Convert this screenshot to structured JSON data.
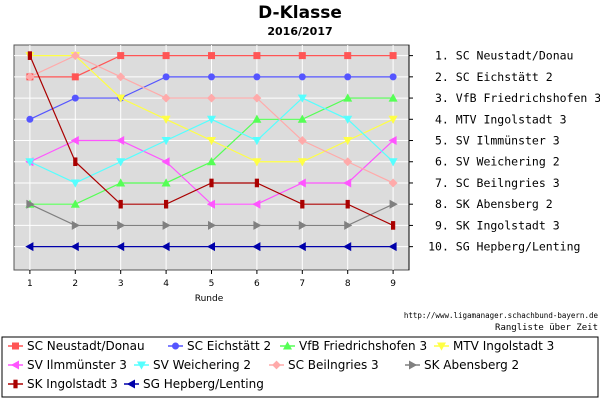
{
  "chart_data": {
    "type": "line",
    "title": "D-Klasse",
    "subtitle": "2016/2017",
    "xlabel": "Runde",
    "x": [
      1,
      2,
      3,
      4,
      5,
      6,
      7,
      8,
      9
    ],
    "xlim": [
      0.65,
      9.35
    ],
    "ylim": [
      0.5,
      11.1
    ],
    "y_inverted": true,
    "grid": true,
    "right_axis_labels": [
      "1. SC Neustadt/Donau",
      "2. SC Eichstätt 2",
      "3. VfB Friedrichshofen 3",
      "4. MTV Ingolstadt 3",
      "5. SV Ilmmünster 3",
      "6. SV Weichering 2",
      "7. SC Beilngries 3",
      "8. SK Abensberg 2",
      "9. SK Ingolstadt 3",
      "10. SG Hepberg/Lenting"
    ],
    "source_url": "http://www.ligamanager.schachbund-bayern.de",
    "source_caption": "Rangliste über Zeit",
    "legend_position": "bottom",
    "series": [
      {
        "name": "SC Neustadt/Donau",
        "color": "#ff5555",
        "marker": "square",
        "values": [
          2,
          2,
          1,
          1,
          1,
          1,
          1,
          1,
          1
        ]
      },
      {
        "name": "SC Eichstätt 2",
        "color": "#5555ff",
        "marker": "circle",
        "values": [
          4,
          3,
          3,
          2,
          2,
          2,
          2,
          2,
          2
        ]
      },
      {
        "name": "VfB Friedrichshofen 3",
        "color": "#55ff55",
        "marker": "triangle-up",
        "values": [
          8,
          8,
          7,
          7,
          6,
          4,
          4,
          3,
          3
        ]
      },
      {
        "name": "MTV Ingolstadt 3",
        "color": "#ffff44",
        "marker": "triangle-down",
        "values": [
          1,
          1,
          3,
          4,
          5,
          6,
          6,
          5,
          4
        ]
      },
      {
        "name": "SV Ilmmünster 3",
        "color": "#ff55ff",
        "marker": "triangle-left",
        "values": [
          6,
          5,
          5,
          6,
          8,
          8,
          7,
          7,
          5
        ]
      },
      {
        "name": "SV Weichering 2",
        "color": "#55ffff",
        "marker": "triangle-down",
        "values": [
          6,
          7,
          6,
          5,
          4,
          5,
          3,
          4,
          6
        ]
      },
      {
        "name": "SC Beilngries 3",
        "color": "#ffaaaa",
        "marker": "diamond",
        "values": [
          2,
          1,
          2,
          3,
          3,
          3,
          5,
          6,
          7
        ]
      },
      {
        "name": "SK Abensberg 2",
        "color": "#808080",
        "marker": "triangle-right",
        "values": [
          8,
          9,
          9,
          9,
          9,
          9,
          9,
          9,
          8
        ]
      },
      {
        "name": "SK Ingolstadt 3",
        "color": "#aa0000",
        "marker": "bar",
        "values": [
          1,
          6,
          8,
          8,
          7,
          7,
          8,
          8,
          9
        ]
      },
      {
        "name": "SG Hepberg/Lenting",
        "color": "#0000aa",
        "marker": "triangle-left",
        "values": [
          10,
          10,
          10,
          10,
          10,
          10,
          10,
          10,
          10
        ]
      }
    ]
  }
}
